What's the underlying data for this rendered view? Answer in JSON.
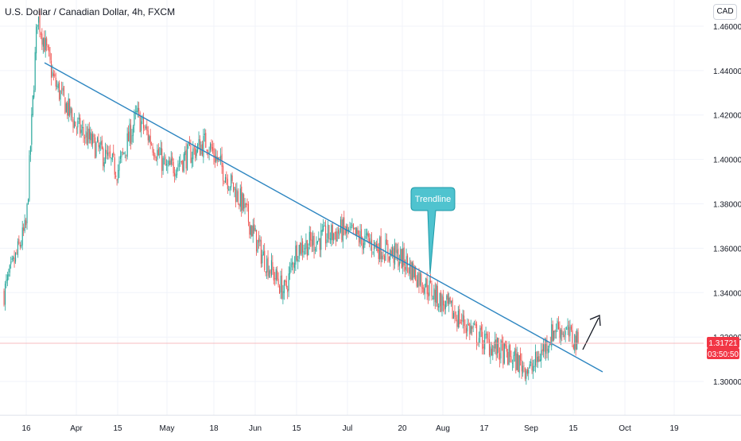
{
  "header": {
    "symbol_title": "U.S. Dollar / Canadian Dollar, 4h, FXCM",
    "currency_button": "CAD"
  },
  "price_tags": {
    "last_price": "1.31721",
    "countdown": "03:50:50"
  },
  "annotation": {
    "label": "Trendline"
  },
  "colors": {
    "up": "#26a69a",
    "down": "#ef5350",
    "trendline": "#2e86c1",
    "callout_fill": "#4fc3cf",
    "callout_border": "#1e9aa8",
    "price_tag": "#f23645",
    "grid": "#f0f3fa"
  },
  "chart_data": {
    "type": "candlestick",
    "title": "U.S. Dollar / Canadian Dollar, 4h, FXCM",
    "y_axis": {
      "ticks": [
        "1.30000",
        "1.32000",
        "1.34000",
        "1.36000",
        "1.38000",
        "1.40000",
        "1.42000",
        "1.44000",
        "1.46000"
      ],
      "range": [
        1.285,
        1.47
      ]
    },
    "x_axis": {
      "ticks": [
        "16",
        "Apr",
        "15",
        "May",
        "18",
        "Jun",
        "15",
        "Jul",
        "20",
        "Aug",
        "17",
        "Sep",
        "15",
        "Oct",
        "19"
      ]
    },
    "price_path": [
      {
        "x": "early Mar",
        "y": 1.34
      },
      {
        "x": "Mar 16",
        "y": 1.37
      },
      {
        "x": "Mar 19",
        "y": 1.465
      },
      {
        "x": "Mar 25",
        "y": 1.435
      },
      {
        "x": "Apr 1",
        "y": 1.415
      },
      {
        "x": "Apr 15",
        "y": 1.395
      },
      {
        "x": "Apr 21",
        "y": 1.42
      },
      {
        "x": "May 1",
        "y": 1.395
      },
      {
        "x": "May 18",
        "y": 1.408
      },
      {
        "x": "May 28",
        "y": 1.38
      },
      {
        "x": "Jun 1",
        "y": 1.358
      },
      {
        "x": "Jun 12",
        "y": 1.34
      },
      {
        "x": "Jun 15",
        "y": 1.36
      },
      {
        "x": "Jul 1",
        "y": 1.368
      },
      {
        "x": "Jul 15",
        "y": 1.36
      },
      {
        "x": "Jul 20",
        "y": 1.355
      },
      {
        "x": "Aug 1",
        "y": 1.335
      },
      {
        "x": "Aug 17",
        "y": 1.318
      },
      {
        "x": "Sep 1",
        "y": 1.305
      },
      {
        "x": "Sep 8",
        "y": 1.325
      },
      {
        "x": "Sep 15",
        "y": 1.3172
      }
    ],
    "trendline": {
      "start": {
        "x": "Mar 20",
        "y": 1.457
      },
      "end": {
        "x": "Sep 25",
        "y": 1.305
      }
    },
    "last_price": 1.31721
  }
}
